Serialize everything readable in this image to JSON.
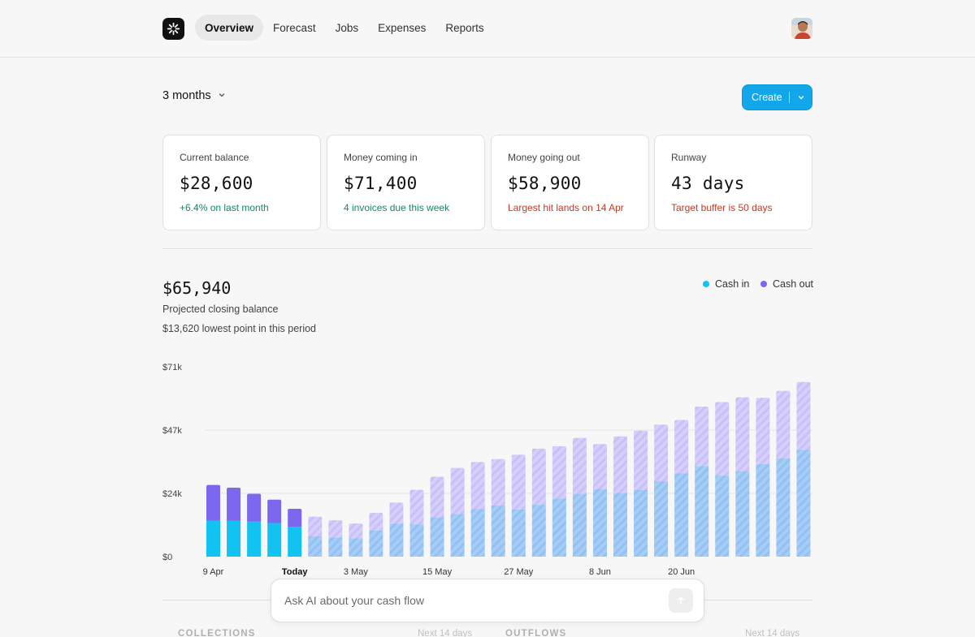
{
  "nav": {
    "items": [
      {
        "label": "Overview",
        "active": true
      },
      {
        "label": "Forecast",
        "active": false
      },
      {
        "label": "Jobs",
        "active": false
      },
      {
        "label": "Expenses",
        "active": false
      },
      {
        "label": "Reports",
        "active": false
      }
    ]
  },
  "period": {
    "label": "3 months"
  },
  "create": {
    "label": "Create"
  },
  "cards": [
    {
      "title": "Current balance",
      "value": "$28,600",
      "sub": "+6.4% on last month",
      "tone": "green"
    },
    {
      "title": "Money coming in",
      "value": "$71,400",
      "sub": "4 invoices due this week",
      "tone": "green"
    },
    {
      "title": "Money going out",
      "value": "$58,900",
      "sub": "Largest hit lands on 14 Apr",
      "tone": "red"
    },
    {
      "title": "Runway",
      "value": "43 days",
      "sub": "Target buffer is 50 days",
      "tone": "red"
    }
  ],
  "projection": {
    "value": "$65,940",
    "label": "Projected closing balance",
    "lowest": "$13,620 lowest point in this period"
  },
  "legend": {
    "cash_in": "Cash in",
    "cash_out": "Cash out"
  },
  "colors": {
    "cash_in": "#12c2f0",
    "cash_out": "#7b68ee",
    "forecast_in": "#9fc8f5",
    "forecast_out": "#d3cbfa"
  },
  "chart_data": {
    "type": "bar",
    "stacked": true,
    "y_ticks": [
      "$71k",
      "$47k",
      "$24k",
      "$0"
    ],
    "ylim": [
      0,
      71
    ],
    "x_tick_labels": [
      "9 Apr",
      "Today",
      "3 May",
      "15 May",
      "27 May",
      "8 Jun",
      "20 Jun"
    ],
    "x_tick_bar_index": [
      0,
      4,
      7,
      11,
      15,
      19,
      23
    ],
    "today_index": 4,
    "series": [
      {
        "name": "Cash in",
        "values": [
          13.4,
          13.4,
          13.1,
          12.6,
          11.1,
          7.6,
          7.2,
          6.9,
          9.8,
          12.3,
          12.1,
          14.7,
          16.0,
          17.8,
          19.1,
          17.6,
          19.4,
          21.7,
          23.5,
          25.2,
          23.8,
          25.0,
          28.2,
          31.2,
          33.9,
          30.3,
          32.0,
          34.6,
          36.8,
          40.0
        ]
      },
      {
        "name": "Cash out",
        "values": [
          13.4,
          12.4,
          10.4,
          8.7,
          6.8,
          7.4,
          6.4,
          5.5,
          6.6,
          7.9,
          12.9,
          15.2,
          17.2,
          17.6,
          17.4,
          20.5,
          21.0,
          19.6,
          20.9,
          16.9,
          21.2,
          22.1,
          21.2,
          19.9,
          22.2,
          27.5,
          27.6,
          24.8,
          25.2,
          25.3
        ]
      }
    ]
  },
  "ask": {
    "placeholder": "Ask AI about your cash flow"
  },
  "sections": {
    "collections": "COLLECTIONS",
    "collections_note": "Next 14 days",
    "outflows": "OUTFLOWS",
    "outflows_note": "Next 14 days"
  }
}
